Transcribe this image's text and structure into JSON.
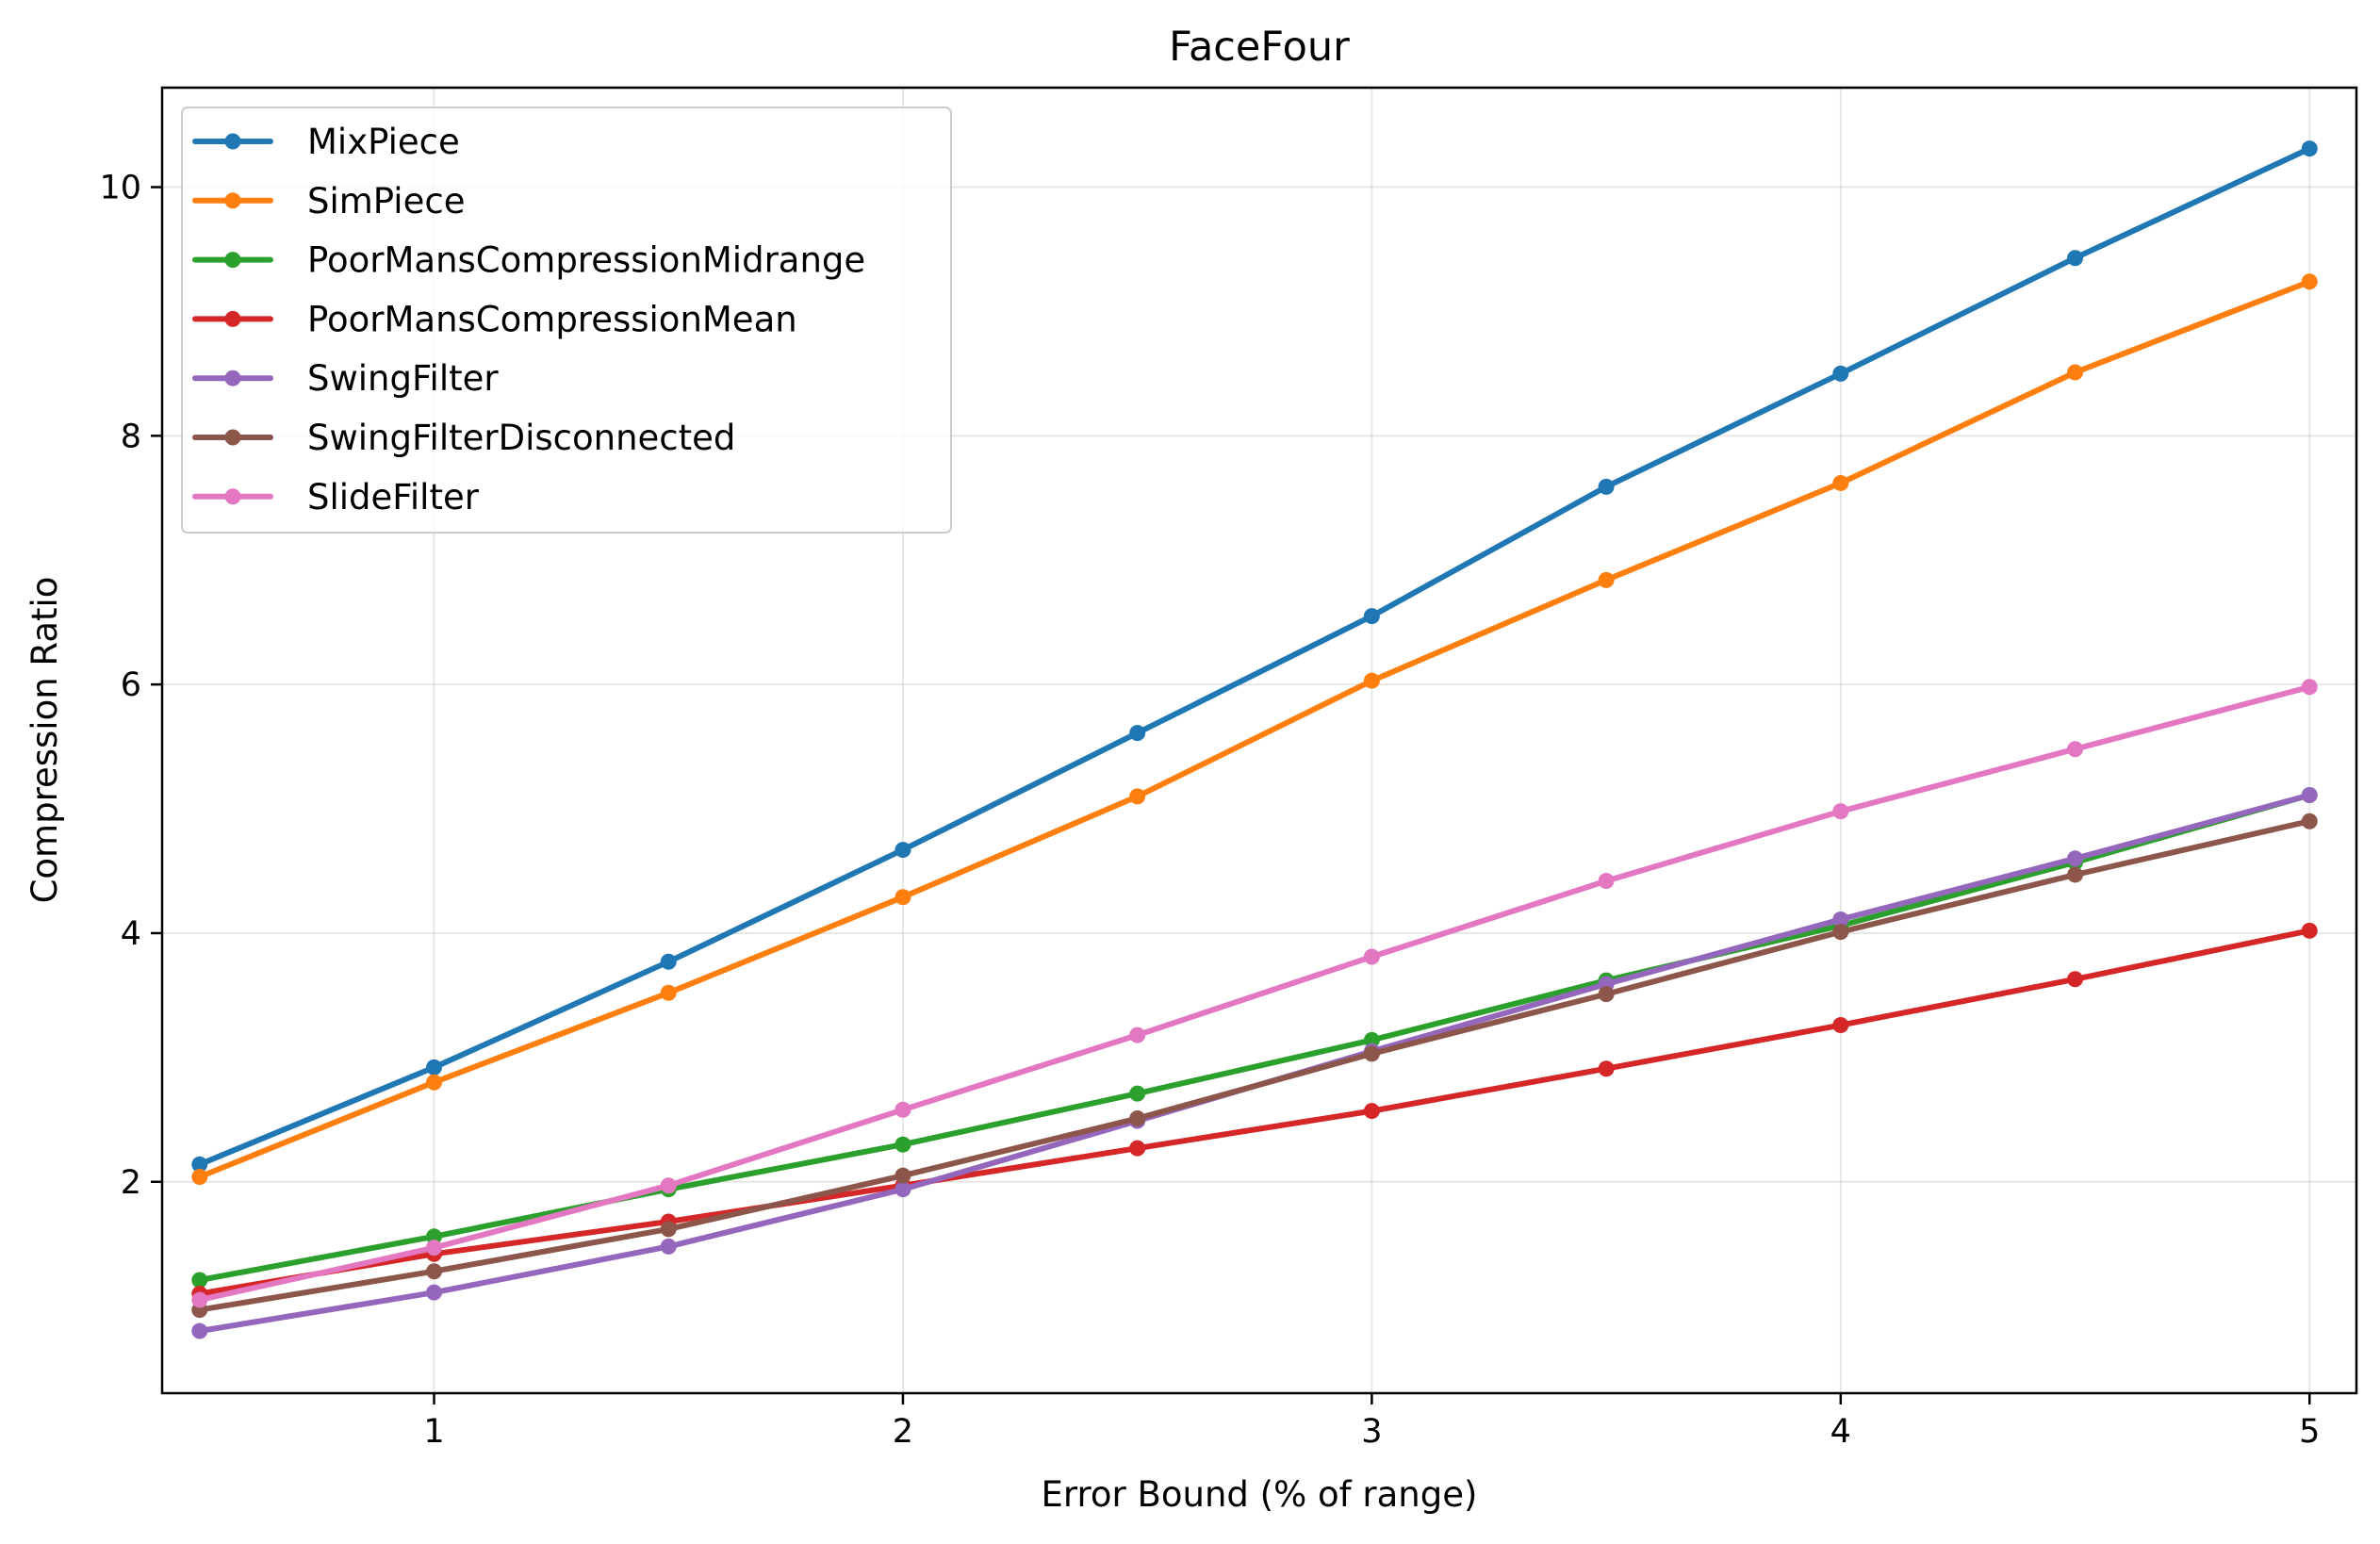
{
  "chart_data": {
    "type": "line",
    "title": "FaceFour",
    "xlabel": "Error Bound (% of range)",
    "ylabel": "Compression Ratio",
    "xlim": [
      0.42,
      5.1
    ],
    "ylim": [
      0.3,
      10.8
    ],
    "x_ticks": [
      1,
      2,
      3,
      4,
      5
    ],
    "x_tick_labels": [
      "1",
      "2",
      "3",
      "4",
      "5"
    ],
    "y_ticks": [
      2,
      4,
      6,
      8,
      10
    ],
    "y_tick_labels": [
      "2",
      "4",
      "6",
      "8",
      "10"
    ],
    "grid": true,
    "legend_position": "upper-left",
    "x": [
      0.5,
      1.0,
      1.5,
      2.0,
      2.5,
      3.0,
      3.5,
      4.0,
      4.5,
      5.0
    ],
    "series": [
      {
        "name": "MixPiece",
        "color": "#1f77b4",
        "values": [
          2.14,
          2.92,
          3.77,
          4.67,
          5.61,
          6.55,
          7.59,
          8.5,
          9.43,
          10.31
        ]
      },
      {
        "name": "SimPiece",
        "color": "#ff7f0e",
        "values": [
          2.04,
          2.8,
          3.52,
          4.29,
          5.1,
          6.03,
          6.84,
          7.62,
          8.51,
          9.24
        ]
      },
      {
        "name": "PoorMansCompressionMidrange",
        "color": "#2ca02c",
        "values": [
          1.21,
          1.56,
          1.94,
          2.3,
          2.71,
          3.14,
          3.62,
          4.06,
          4.57,
          5.11
        ]
      },
      {
        "name": "PoorMansCompressionMean",
        "color": "#d62728",
        "values": [
          1.1,
          1.42,
          1.68,
          1.97,
          2.27,
          2.57,
          2.91,
          3.26,
          3.63,
          4.02
        ]
      },
      {
        "name": "SwingFilter",
        "color": "#9467bd",
        "values": [
          0.8,
          1.11,
          1.48,
          1.94,
          2.49,
          3.05,
          3.59,
          4.11,
          4.6,
          5.11
        ]
      },
      {
        "name": "SwingFilterDisconnected",
        "color": "#8c564b",
        "values": [
          0.97,
          1.28,
          1.62,
          2.05,
          2.51,
          3.03,
          3.51,
          4.01,
          4.47,
          4.9
        ]
      },
      {
        "name": "SlideFilter",
        "color": "#e377c2",
        "values": [
          1.05,
          1.47,
          1.97,
          2.58,
          3.18,
          3.81,
          4.42,
          4.98,
          5.48,
          5.98
        ]
      }
    ]
  }
}
